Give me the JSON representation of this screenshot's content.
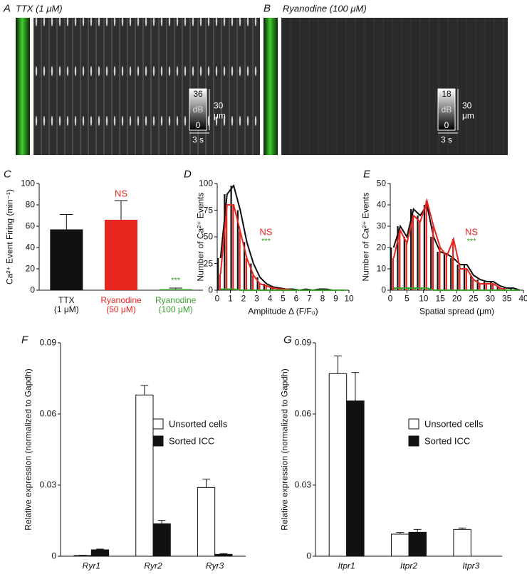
{
  "images": [
    {
      "label": "A",
      "title": "TTX (1 μM)",
      "colorbar_max": 36,
      "colorbar_unit": "dB",
      "colorbar_min": 0,
      "scale_y_value": 30,
      "scale_y_unit": "μm",
      "scale_x": "3 s"
    },
    {
      "label": "B",
      "title": "Ryanodine (100 μM)",
      "colorbar_max": 18,
      "colorbar_unit": "dB",
      "colorbar_min": 0,
      "scale_y_value": 30,
      "scale_y_unit": "μm",
      "scale_x": "3 s"
    }
  ],
  "chart_data": [
    {
      "type": "bar",
      "label": "C",
      "ylabel": "Ca²⁺ Event Firing (min⁻¹)",
      "categories": [
        "TTX\n(1 μM)",
        "Ryanodine\n(50 μM)",
        "Ryanodine\n(100 μM)"
      ],
      "values": [
        57,
        66,
        1
      ],
      "errors": [
        14,
        18,
        1
      ],
      "colors": [
        "#111111",
        "#e8251f",
        "#3aa32e"
      ],
      "annotations": [
        null,
        "NS",
        "***"
      ],
      "ylim": [
        0,
        100
      ],
      "yticks": [
        0,
        20,
        40,
        60,
        80,
        100
      ]
    },
    {
      "type": "histogram",
      "label": "D",
      "xlabel": "Amplitude Δ (F/F₀)",
      "ylabel": "Number of Ca²⁺ Events",
      "bins": [
        0,
        0.5,
        1,
        1.5,
        2,
        2.5,
        3,
        3.5,
        4,
        4.5,
        5,
        5.5,
        6,
        6.5,
        7,
        7.5,
        8,
        8.5,
        9,
        9.5,
        10
      ],
      "series": [
        {
          "color": "#111111",
          "values": [
            30,
            90,
            98,
            75,
            45,
            25,
            12,
            6,
            3,
            2,
            1,
            1,
            0,
            1,
            0,
            1,
            1,
            0,
            0,
            0
          ]
        },
        {
          "color": "#e8251f",
          "values": [
            15,
            80,
            80,
            55,
            30,
            14,
            6,
            4,
            2,
            1,
            1,
            0,
            0,
            0,
            0,
            0,
            0,
            0,
            0,
            0
          ]
        },
        {
          "color": "#3aa32e",
          "values": [
            1,
            1,
            1,
            0,
            0,
            0,
            0,
            0,
            0,
            0,
            0,
            0,
            0,
            0,
            0,
            0,
            0,
            0,
            0,
            0
          ]
        }
      ],
      "annotations": [
        {
          "text": "NS",
          "color": "#e8251f"
        },
        {
          "text": "***",
          "color": "#3aa32e"
        }
      ],
      "xlim": [
        0,
        10
      ],
      "xticks": [
        0,
        1,
        2,
        3,
        4,
        5,
        6,
        7,
        8,
        9,
        10
      ],
      "ylim": [
        0,
        100
      ],
      "yticks": [
        0,
        25,
        50,
        75,
        100
      ]
    },
    {
      "type": "histogram",
      "label": "E",
      "xlabel": "Spatial spread (μm)",
      "ylabel": "Number of Ca²⁺ Events",
      "bins": [
        0,
        2,
        4,
        6,
        8,
        10,
        12,
        14,
        16,
        18,
        20,
        22,
        24,
        26,
        28,
        30,
        32,
        34,
        36,
        38,
        40
      ],
      "series": [
        {
          "color": "#111111",
          "values": [
            20,
            30,
            25,
            38,
            35,
            40,
            25,
            18,
            17,
            15,
            12,
            12,
            7,
            5,
            4,
            4,
            2,
            1,
            1,
            0
          ]
        },
        {
          "color": "#e8251f",
          "values": [
            15,
            28,
            22,
            35,
            32,
            42,
            30,
            20,
            16,
            24,
            10,
            10,
            5,
            3,
            3,
            3,
            1,
            0,
            0,
            0
          ]
        },
        {
          "color": "#3aa32e",
          "values": [
            1,
            1,
            1,
            1,
            1,
            1,
            0,
            0,
            0,
            0,
            0,
            0,
            0,
            0,
            0,
            0,
            0,
            0,
            0,
            0
          ]
        }
      ],
      "annotations": [
        {
          "text": "NS",
          "color": "#e8251f"
        },
        {
          "text": "***",
          "color": "#3aa32e"
        }
      ],
      "xlim": [
        0,
        40
      ],
      "xticks": [
        0,
        5,
        10,
        15,
        20,
        25,
        30,
        35,
        40
      ],
      "ylim": [
        0,
        50
      ],
      "yticks": [
        0,
        10,
        20,
        30,
        40,
        50
      ]
    },
    {
      "type": "grouped_bar",
      "label": "F",
      "ylabel": "Relative expression (normalized to Gapdh)",
      "categories": [
        "Ryr1",
        "Ryr2",
        "Ryr3"
      ],
      "italic_categories": true,
      "series": [
        {
          "name": "Unsorted cells",
          "color": "#ffffff",
          "values": [
            0.0003,
            0.068,
            0.029
          ],
          "errors": [
            0.0001,
            0.004,
            0.0035
          ]
        },
        {
          "name": "Sorted ICC",
          "color": "#111111",
          "values": [
            0.0027,
            0.0137,
            0.0008
          ],
          "errors": [
            0.0003,
            0.0014,
            0.0003
          ]
        }
      ],
      "legend": "center-right",
      "ylim": [
        0,
        0.09
      ],
      "yticks": [
        0,
        0.03,
        0.06,
        0.09
      ]
    },
    {
      "type": "grouped_bar",
      "label": "G",
      "ylabel": "Relative expression (normalized to Gapdh)",
      "categories": [
        "Itpr1",
        "Itpr2",
        "Itpr3"
      ],
      "italic_categories": true,
      "series": [
        {
          "name": "Unsorted cells",
          "color": "#ffffff",
          "values": [
            0.077,
            0.0093,
            0.0113
          ],
          "errors": [
            0.0075,
            0.0007,
            0.0006
          ]
        },
        {
          "name": "Sorted ICC",
          "color": "#111111",
          "values": [
            0.0655,
            0.0101,
            null
          ],
          "errors": [
            0.012,
            0.0012,
            null
          ]
        }
      ],
      "legend": "center-right",
      "ylim": [
        0,
        0.09
      ],
      "yticks": [
        0,
        0.03,
        0.06,
        0.09
      ]
    }
  ]
}
